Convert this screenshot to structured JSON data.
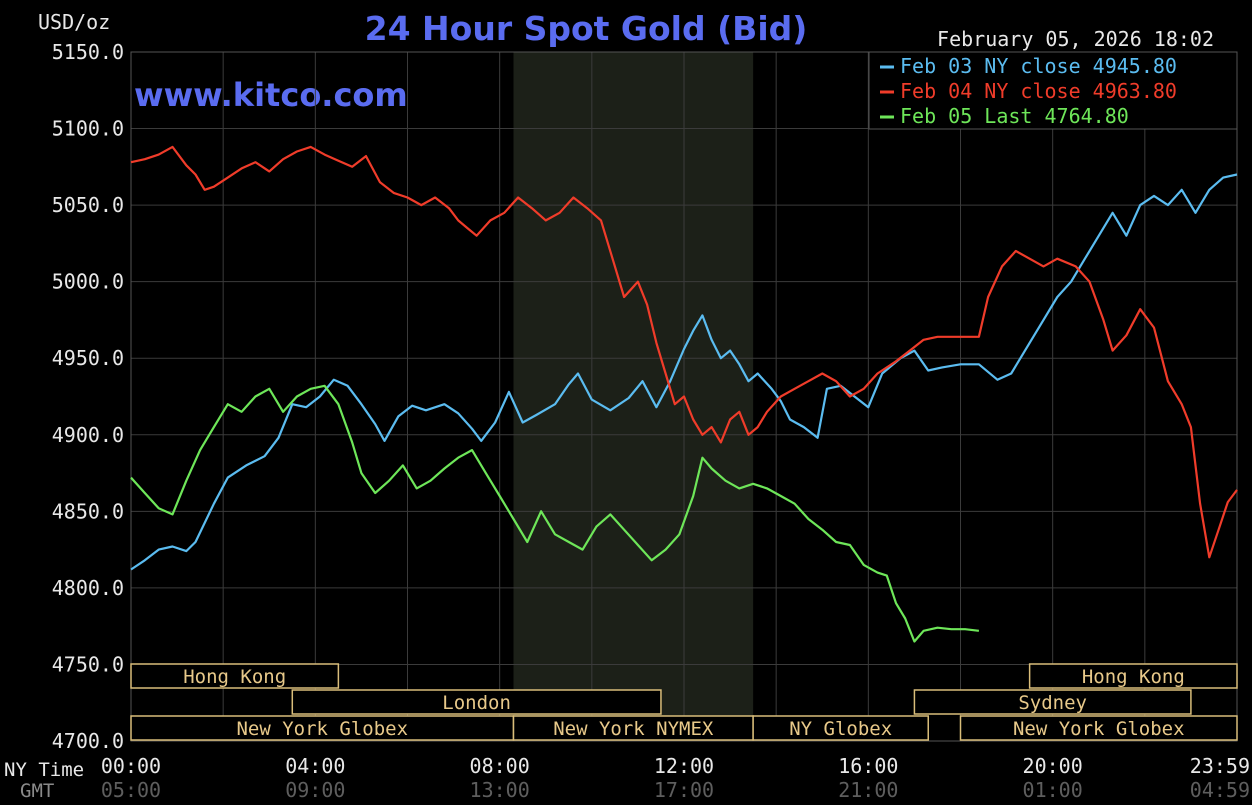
{
  "header": {
    "title": "24 Hour Spot Gold (Bid)",
    "unit": "USD/oz",
    "datetime": "February 05, 2026 18:02",
    "site": "www.kitco.com"
  },
  "axis": {
    "ny_time_label": "NY Time",
    "gmt_label": "GMT",
    "x_ticks": [
      {
        "h": 0,
        "ny": "00:00",
        "gmt": "05:00"
      },
      {
        "h": 4,
        "ny": "04:00",
        "gmt": "09:00"
      },
      {
        "h": 8,
        "ny": "08:00",
        "gmt": "13:00"
      },
      {
        "h": 12,
        "ny": "12:00",
        "gmt": "17:00"
      },
      {
        "h": 16,
        "ny": "16:00",
        "gmt": "21:00"
      },
      {
        "h": 20,
        "ny": "20:00",
        "gmt": "01:00"
      },
      {
        "h": 24,
        "ny": "23:59",
        "gmt": "04:59"
      }
    ],
    "y_ticks": [
      "5150.0",
      "5100.0",
      "5050.0",
      "5000.0",
      "4950.0",
      "4900.0",
      "4850.0",
      "4800.0",
      "4750.0",
      "4700.0"
    ]
  },
  "sessions": [
    {
      "label": "Hong Kong",
      "row": 0,
      "start": 0,
      "end": 4.5
    },
    {
      "label": "Hong Kong",
      "row": 0,
      "start": 19.5,
      "end": 24
    },
    {
      "label": "London",
      "row": 1,
      "start": 3.5,
      "end": 11.5
    },
    {
      "label": "Sydney",
      "row": 1,
      "start": 17.0,
      "end": 23.0
    },
    {
      "label": "New York Globex",
      "row": 2,
      "start": 0,
      "end": 8.3
    },
    {
      "label": "New York NYMEX",
      "row": 2,
      "start": 8.3,
      "end": 13.5
    },
    {
      "label": "NY Globex",
      "row": 2,
      "start": 13.5,
      "end": 17.3
    },
    {
      "label": "New York Globex",
      "row": 2,
      "start": 18.0,
      "end": 24
    }
  ],
  "chart_data": {
    "type": "line",
    "title": "24 Hour Spot Gold (Bid)",
    "ylabel": "USD/oz",
    "xlabel": "NY Time",
    "ylim": [
      4700,
      5150
    ],
    "xlim": [
      0,
      24
    ],
    "grid": true,
    "legend_position": "top-right",
    "shaded_region": [
      8.3,
      13.5
    ],
    "series": [
      {
        "name": "Feb 03 NY close",
        "legend_value": "4945.80",
        "color": "#5bbcf0",
        "points": [
          [
            0,
            4812
          ],
          [
            0.3,
            4818
          ],
          [
            0.6,
            4825
          ],
          [
            0.9,
            4827
          ],
          [
            1.2,
            4824
          ],
          [
            1.4,
            4830
          ],
          [
            1.8,
            4855
          ],
          [
            2.1,
            4872
          ],
          [
            2.5,
            4880
          ],
          [
            2.9,
            4886
          ],
          [
            3.2,
            4898
          ],
          [
            3.5,
            4920
          ],
          [
            3.8,
            4918
          ],
          [
            4.1,
            4925
          ],
          [
            4.4,
            4936
          ],
          [
            4.7,
            4932
          ],
          [
            5.0,
            4920
          ],
          [
            5.3,
            4907
          ],
          [
            5.5,
            4896
          ],
          [
            5.8,
            4912
          ],
          [
            6.1,
            4919
          ],
          [
            6.4,
            4916
          ],
          [
            6.8,
            4920
          ],
          [
            7.1,
            4914
          ],
          [
            7.4,
            4904
          ],
          [
            7.6,
            4896
          ],
          [
            7.9,
            4908
          ],
          [
            8.2,
            4928
          ],
          [
            8.5,
            4908
          ],
          [
            8.8,
            4913
          ],
          [
            9.2,
            4920
          ],
          [
            9.5,
            4933
          ],
          [
            9.7,
            4940
          ],
          [
            10.0,
            4923
          ],
          [
            10.4,
            4916
          ],
          [
            10.8,
            4924
          ],
          [
            11.1,
            4935
          ],
          [
            11.4,
            4918
          ],
          [
            11.7,
            4935
          ],
          [
            12.0,
            4956
          ],
          [
            12.2,
            4968
          ],
          [
            12.4,
            4978
          ],
          [
            12.6,
            4962
          ],
          [
            12.8,
            4950
          ],
          [
            13.0,
            4955
          ],
          [
            13.2,
            4946
          ],
          [
            13.4,
            4935
          ],
          [
            13.6,
            4940
          ],
          [
            13.9,
            4930
          ],
          [
            14.1,
            4922
          ],
          [
            14.3,
            4910
          ],
          [
            14.6,
            4905
          ],
          [
            14.9,
            4898
          ],
          [
            15.1,
            4930
          ],
          [
            15.4,
            4932
          ],
          [
            15.7,
            4925
          ],
          [
            16.0,
            4918
          ],
          [
            16.3,
            4940
          ],
          [
            16.7,
            4950
          ],
          [
            17.0,
            4955
          ],
          [
            17.3,
            4942
          ],
          [
            17.6,
            4944
          ],
          [
            18.0,
            4946
          ],
          [
            18.4,
            4946
          ],
          [
            18.8,
            4936
          ],
          [
            19.1,
            4940
          ],
          [
            19.5,
            4960
          ],
          [
            19.8,
            4975
          ],
          [
            20.1,
            4990
          ],
          [
            20.4,
            5000
          ],
          [
            20.7,
            5015
          ],
          [
            21.0,
            5030
          ],
          [
            21.3,
            5045
          ],
          [
            21.6,
            5030
          ],
          [
            21.9,
            5050
          ],
          [
            22.2,
            5056
          ],
          [
            22.5,
            5050
          ],
          [
            22.8,
            5060
          ],
          [
            23.1,
            5045
          ],
          [
            23.4,
            5060
          ],
          [
            23.7,
            5068
          ],
          [
            24,
            5070
          ]
        ]
      },
      {
        "name": "Feb 04 NY close",
        "legend_value": "4963.80",
        "color": "#f03c2a",
        "points": [
          [
            0,
            5078
          ],
          [
            0.3,
            5080
          ],
          [
            0.6,
            5083
          ],
          [
            0.9,
            5088
          ],
          [
            1.2,
            5076
          ],
          [
            1.4,
            5070
          ],
          [
            1.6,
            5060
          ],
          [
            1.8,
            5062
          ],
          [
            2.1,
            5068
          ],
          [
            2.4,
            5074
          ],
          [
            2.7,
            5078
          ],
          [
            3.0,
            5072
          ],
          [
            3.3,
            5080
          ],
          [
            3.6,
            5085
          ],
          [
            3.9,
            5088
          ],
          [
            4.2,
            5083
          ],
          [
            4.5,
            5079
          ],
          [
            4.8,
            5075
          ],
          [
            5.1,
            5082
          ],
          [
            5.4,
            5065
          ],
          [
            5.7,
            5058
          ],
          [
            6.0,
            5055
          ],
          [
            6.3,
            5050
          ],
          [
            6.6,
            5055
          ],
          [
            6.9,
            5048
          ],
          [
            7.1,
            5040
          ],
          [
            7.3,
            5035
          ],
          [
            7.5,
            5030
          ],
          [
            7.8,
            5040
          ],
          [
            8.1,
            5045
          ],
          [
            8.4,
            5055
          ],
          [
            8.7,
            5048
          ],
          [
            9.0,
            5040
          ],
          [
            9.3,
            5045
          ],
          [
            9.6,
            5055
          ],
          [
            9.9,
            5048
          ],
          [
            10.2,
            5040
          ],
          [
            10.5,
            5010
          ],
          [
            10.7,
            4990
          ],
          [
            11.0,
            5000
          ],
          [
            11.2,
            4985
          ],
          [
            11.4,
            4960
          ],
          [
            11.6,
            4940
          ],
          [
            11.8,
            4920
          ],
          [
            12.0,
            4925
          ],
          [
            12.2,
            4910
          ],
          [
            12.4,
            4900
          ],
          [
            12.6,
            4905
          ],
          [
            12.8,
            4895
          ],
          [
            13.0,
            4910
          ],
          [
            13.2,
            4915
          ],
          [
            13.4,
            4900
          ],
          [
            13.6,
            4905
          ],
          [
            13.8,
            4915
          ],
          [
            14.1,
            4925
          ],
          [
            14.4,
            4930
          ],
          [
            14.7,
            4935
          ],
          [
            15.0,
            4940
          ],
          [
            15.3,
            4935
          ],
          [
            15.6,
            4925
          ],
          [
            15.9,
            4930
          ],
          [
            16.2,
            4940
          ],
          [
            16.6,
            4948
          ],
          [
            16.9,
            4955
          ],
          [
            17.2,
            4962
          ],
          [
            17.5,
            4964
          ],
          [
            18.0,
            4964
          ],
          [
            18.4,
            4964
          ],
          [
            18.6,
            4990
          ],
          [
            18.9,
            5010
          ],
          [
            19.2,
            5020
          ],
          [
            19.5,
            5015
          ],
          [
            19.8,
            5010
          ],
          [
            20.1,
            5015
          ],
          [
            20.5,
            5010
          ],
          [
            20.8,
            5000
          ],
          [
            21.1,
            4975
          ],
          [
            21.3,
            4955
          ],
          [
            21.6,
            4965
          ],
          [
            21.9,
            4982
          ],
          [
            22.2,
            4970
          ],
          [
            22.5,
            4935
          ],
          [
            22.8,
            4920
          ],
          [
            23.0,
            4905
          ],
          [
            23.2,
            4855
          ],
          [
            23.4,
            4820
          ],
          [
            23.6,
            4838
          ],
          [
            23.8,
            4856
          ],
          [
            24,
            4864
          ]
        ]
      },
      {
        "name": "Feb 05 Last",
        "legend_value": "4764.80",
        "color": "#6ee659",
        "points": [
          [
            0,
            4872
          ],
          [
            0.3,
            4862
          ],
          [
            0.6,
            4852
          ],
          [
            0.9,
            4848
          ],
          [
            1.2,
            4870
          ],
          [
            1.5,
            4890
          ],
          [
            1.8,
            4905
          ],
          [
            2.1,
            4920
          ],
          [
            2.4,
            4915
          ],
          [
            2.7,
            4925
          ],
          [
            3.0,
            4930
          ],
          [
            3.3,
            4915
          ],
          [
            3.6,
            4925
          ],
          [
            3.9,
            4930
          ],
          [
            4.2,
            4932
          ],
          [
            4.5,
            4920
          ],
          [
            4.8,
            4895
          ],
          [
            5.0,
            4875
          ],
          [
            5.3,
            4862
          ],
          [
            5.6,
            4870
          ],
          [
            5.9,
            4880
          ],
          [
            6.2,
            4865
          ],
          [
            6.5,
            4870
          ],
          [
            6.8,
            4878
          ],
          [
            7.1,
            4885
          ],
          [
            7.4,
            4890
          ],
          [
            7.7,
            4875
          ],
          [
            8.0,
            4860
          ],
          [
            8.3,
            4845
          ],
          [
            8.6,
            4830
          ],
          [
            8.9,
            4850
          ],
          [
            9.2,
            4835
          ],
          [
            9.5,
            4830
          ],
          [
            9.8,
            4825
          ],
          [
            10.1,
            4840
          ],
          [
            10.4,
            4848
          ],
          [
            10.7,
            4838
          ],
          [
            11.0,
            4828
          ],
          [
            11.3,
            4818
          ],
          [
            11.6,
            4825
          ],
          [
            11.9,
            4835
          ],
          [
            12.2,
            4860
          ],
          [
            12.4,
            4885
          ],
          [
            12.6,
            4878
          ],
          [
            12.9,
            4870
          ],
          [
            13.2,
            4865
          ],
          [
            13.5,
            4868
          ],
          [
            13.8,
            4865
          ],
          [
            14.1,
            4860
          ],
          [
            14.4,
            4855
          ],
          [
            14.7,
            4845
          ],
          [
            15.0,
            4838
          ],
          [
            15.3,
            4830
          ],
          [
            15.6,
            4828
          ],
          [
            15.9,
            4815
          ],
          [
            16.2,
            4810
          ],
          [
            16.4,
            4808
          ],
          [
            16.6,
            4790
          ],
          [
            16.8,
            4780
          ],
          [
            17.0,
            4765
          ],
          [
            17.2,
            4772
          ],
          [
            17.5,
            4774
          ],
          [
            17.8,
            4773
          ],
          [
            18.1,
            4773
          ],
          [
            18.4,
            4772
          ]
        ]
      }
    ]
  }
}
